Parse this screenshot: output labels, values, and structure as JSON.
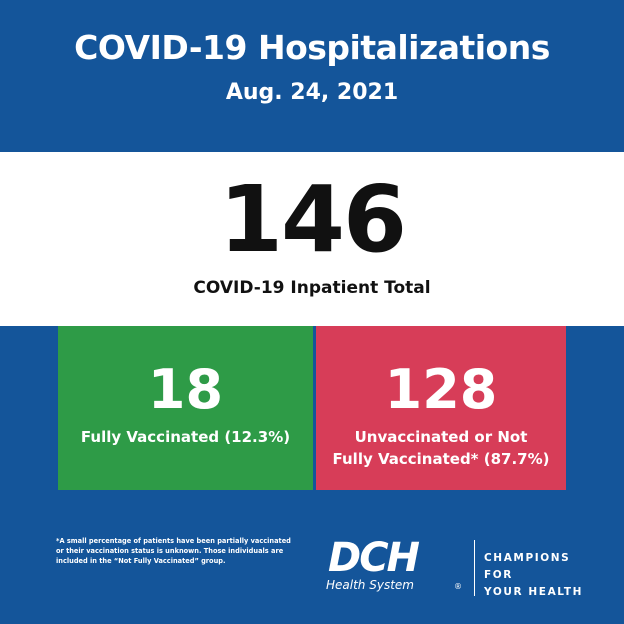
{
  "header": {
    "title": "COVID-19 Hospitalizations",
    "date": "Aug. 24, 2021"
  },
  "total": {
    "value": "146",
    "label": "COVID-19 Inpatient Total"
  },
  "vaccinated": {
    "value": "18",
    "label": "Fully Vaccinated (12.3%)",
    "color": "#2e9b47"
  },
  "unvaccinated": {
    "value": "128",
    "label_line1": "Unvaccinated or Not",
    "label_line2": "Fully Vaccinated* (87.7%)",
    "color": "#d73d58"
  },
  "footnote": {
    "line1": "*A small percentage of patients have been partially vaccinated",
    "line2": "or their vaccination status is unknown. Those individuals are",
    "line3": "included in the “Not Fully Vaccinated” group."
  },
  "branding": {
    "logo_text": "DCH",
    "logo_subtext": "Health System",
    "registered_mark": "®",
    "tagline_line1": "CHAMPIONS FOR",
    "tagline_line2": "YOUR HEALTH"
  },
  "colors": {
    "background": "#14559a",
    "card": "#ffffff",
    "text_dark": "#111111"
  }
}
